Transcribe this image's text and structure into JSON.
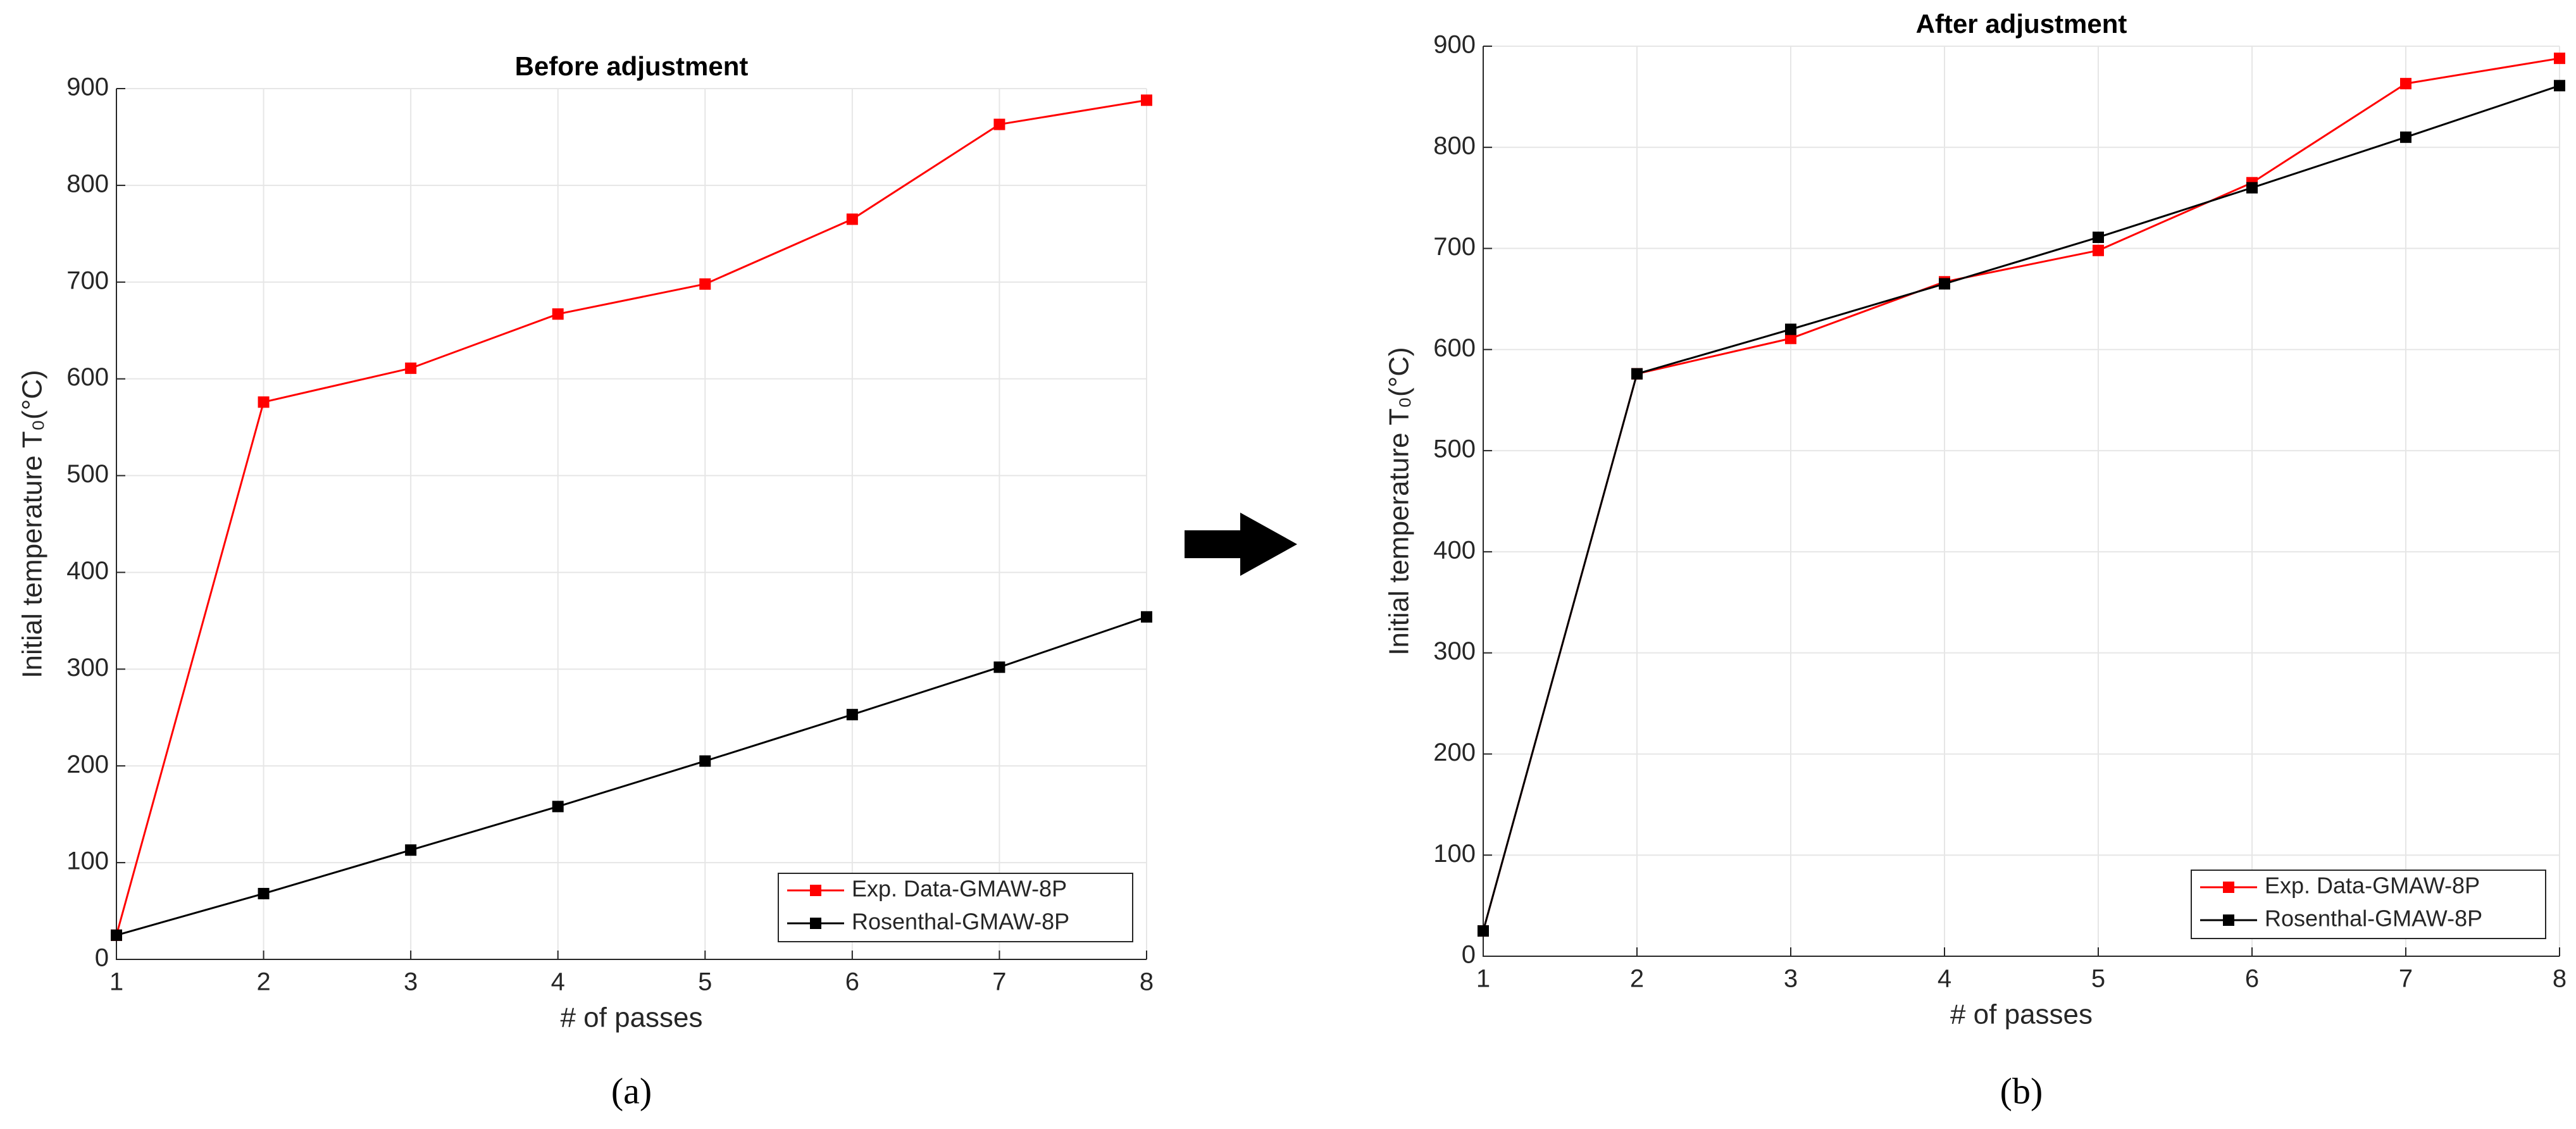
{
  "chart_data": [
    {
      "type": "line",
      "title": "Before adjustment",
      "caption": "(a)",
      "xlabel": "# of passes",
      "ylabel": "Initial temperature T₀(°C)",
      "x": [
        1,
        2,
        3,
        4,
        5,
        6,
        7,
        8
      ],
      "series": [
        {
          "name": "Exp. Data-GMAW-8P",
          "color": "#ff0000",
          "values": [
            25,
            576,
            611,
            667,
            698,
            765,
            863,
            888
          ]
        },
        {
          "name": "Rosenthal-GMAW-8P",
          "color": "#000000",
          "values": [
            25,
            68,
            113,
            158,
            205,
            253,
            302,
            354
          ]
        }
      ],
      "xlim": [
        1,
        8
      ],
      "xticks": [
        1,
        2,
        3,
        4,
        5,
        6,
        7,
        8
      ],
      "ylim": [
        0,
        900
      ],
      "yticks": [
        0,
        100,
        200,
        300,
        400,
        500,
        600,
        700,
        800,
        900
      ],
      "grid": true,
      "legend": "lower right"
    },
    {
      "type": "line",
      "title": "After adjustment",
      "caption": "(b)",
      "xlabel": "# of passes",
      "ylabel": "Initial temperature T₀(°C)",
      "x": [
        1,
        2,
        3,
        4,
        5,
        6,
        7,
        8
      ],
      "series": [
        {
          "name": "Exp. Data-GMAW-8P",
          "color": "#ff0000",
          "values": [
            25,
            576,
            611,
            667,
            698,
            765,
            863,
            888
          ]
        },
        {
          "name": "Rosenthal-GMAW-8P",
          "color": "#000000",
          "values": [
            25,
            576,
            620,
            665,
            711,
            760,
            810,
            861
          ]
        }
      ],
      "xlim": [
        1,
        8
      ],
      "xticks": [
        1,
        2,
        3,
        4,
        5,
        6,
        7,
        8
      ],
      "ylim": [
        0,
        900
      ],
      "yticks": [
        0,
        100,
        200,
        300,
        400,
        500,
        600,
        700,
        800,
        900
      ],
      "grid": true,
      "legend": "lower right"
    }
  ]
}
